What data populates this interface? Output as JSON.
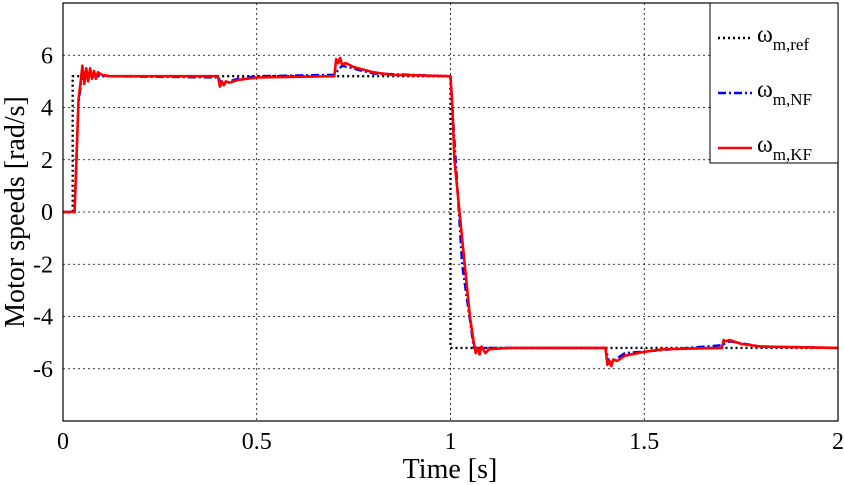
{
  "chart_data": {
    "type": "line",
    "title": "",
    "xlabel": "Time [s]",
    "ylabel": "Motor speeds [rad/s]",
    "xlim": [
      0,
      2
    ],
    "ylim": [
      -8,
      8
    ],
    "x_ticks": [
      "0",
      "0.5",
      "1",
      "1.5",
      "2"
    ],
    "y_ticks": [
      "6",
      "4",
      "2",
      "0",
      "-2",
      "-4",
      "-6"
    ],
    "grid": true,
    "legend_position": "top-right",
    "series": [
      {
        "name_base": "ω",
        "name_sub": "m,ref",
        "color": "#000000",
        "style": "dotted",
        "points": [
          [
            0,
            0
          ],
          [
            0.025,
            0
          ],
          [
            0.025,
            5.2
          ],
          [
            0.4,
            5.2
          ],
          [
            0.45,
            5.2
          ],
          [
            0.7,
            5.2
          ],
          [
            1.0,
            5.2
          ],
          [
            1.0,
            -5.2
          ],
          [
            2.0,
            -5.2
          ]
        ]
      },
      {
        "name_base": "ω",
        "name_sub": "m,NF",
        "color": "#0000ff",
        "style": "dashdot",
        "points": [
          [
            0,
            0
          ],
          [
            0.03,
            0
          ],
          [
            0.04,
            4.2
          ],
          [
            0.05,
            5.3
          ],
          [
            0.1,
            5.2
          ],
          [
            0.4,
            5.15
          ],
          [
            0.41,
            4.9
          ],
          [
            0.45,
            5.1
          ],
          [
            0.5,
            5.2
          ],
          [
            0.7,
            5.25
          ],
          [
            0.72,
            5.6
          ],
          [
            0.8,
            5.3
          ],
          [
            1.0,
            5.2
          ],
          [
            1.005,
            4.0
          ],
          [
            1.03,
            -2.0
          ],
          [
            1.06,
            -5.2
          ],
          [
            1.1,
            -5.2
          ],
          [
            1.4,
            -5.2
          ],
          [
            1.41,
            -5.8
          ],
          [
            1.45,
            -5.4
          ],
          [
            1.7,
            -5.1
          ],
          [
            1.72,
            -4.95
          ],
          [
            1.8,
            -5.15
          ],
          [
            2.0,
            -5.2
          ]
        ]
      },
      {
        "name_base": "ω",
        "name_sub": "m,KF",
        "color": "#ff0000",
        "style": "solid",
        "points": [
          [
            0,
            0
          ],
          [
            0.03,
            0
          ],
          [
            0.04,
            4.3
          ],
          [
            0.045,
            4.9
          ],
          [
            0.05,
            5.6
          ],
          [
            0.055,
            4.9
          ],
          [
            0.06,
            5.5
          ],
          [
            0.065,
            5.0
          ],
          [
            0.07,
            5.5
          ],
          [
            0.075,
            5.1
          ],
          [
            0.08,
            5.4
          ],
          [
            0.085,
            5.1
          ],
          [
            0.09,
            5.35
          ],
          [
            0.1,
            5.25
          ],
          [
            0.12,
            5.2
          ],
          [
            0.4,
            5.2
          ],
          [
            0.405,
            4.8
          ],
          [
            0.41,
            5.0
          ],
          [
            0.415,
            4.85
          ],
          [
            0.42,
            5.0
          ],
          [
            0.43,
            4.95
          ],
          [
            0.45,
            5.05
          ],
          [
            0.5,
            5.15
          ],
          [
            0.7,
            5.2
          ],
          [
            0.705,
            5.85
          ],
          [
            0.71,
            5.7
          ],
          [
            0.715,
            5.9
          ],
          [
            0.72,
            5.65
          ],
          [
            0.73,
            5.7
          ],
          [
            0.75,
            5.55
          ],
          [
            0.8,
            5.35
          ],
          [
            0.85,
            5.25
          ],
          [
            1.0,
            5.2
          ],
          [
            1.005,
            4.0
          ],
          [
            1.01,
            2.0
          ],
          [
            1.03,
            -1.0
          ],
          [
            1.05,
            -4.0
          ],
          [
            1.06,
            -5.0
          ],
          [
            1.065,
            -5.4
          ],
          [
            1.07,
            -5.2
          ],
          [
            1.075,
            -5.45
          ],
          [
            1.08,
            -5.15
          ],
          [
            1.09,
            -5.4
          ],
          [
            1.1,
            -5.25
          ],
          [
            1.15,
            -5.2
          ],
          [
            1.4,
            -5.2
          ],
          [
            1.405,
            -5.85
          ],
          [
            1.41,
            -5.7
          ],
          [
            1.415,
            -5.9
          ],
          [
            1.42,
            -5.65
          ],
          [
            1.43,
            -5.7
          ],
          [
            1.45,
            -5.5
          ],
          [
            1.5,
            -5.35
          ],
          [
            1.55,
            -5.25
          ],
          [
            1.7,
            -5.2
          ],
          [
            1.705,
            -4.9
          ],
          [
            1.71,
            -4.95
          ],
          [
            1.72,
            -4.9
          ],
          [
            1.75,
            -5.05
          ],
          [
            1.8,
            -5.15
          ],
          [
            2.0,
            -5.2
          ]
        ]
      }
    ]
  }
}
